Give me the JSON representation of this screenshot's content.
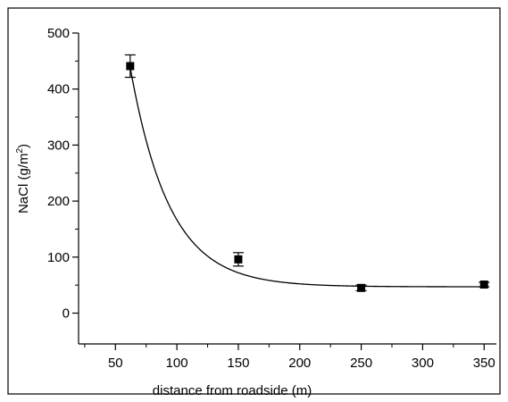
{
  "chart_data": {
    "type": "scatter",
    "title": "",
    "xlabel": "distance from roadside (m)",
    "ylabel_main": "NaCl (g/m",
    "ylabel_sup": "2",
    "ylabel_close": ")",
    "xlim": [
      20,
      360
    ],
    "ylim": [
      -55,
      500
    ],
    "xticks": [
      50,
      100,
      150,
      200,
      250,
      300,
      350
    ],
    "yticks": [
      0,
      100,
      200,
      300,
      400,
      500
    ],
    "x_minor_ticks": [
      25,
      75,
      125,
      175,
      225,
      275,
      325
    ],
    "y_minor_ticks": [
      50,
      150,
      250,
      350,
      450
    ],
    "grid": false,
    "series": [
      {
        "x": [
          62,
          150,
          250,
          350
        ],
        "y": [
          441,
          96,
          45,
          51
        ],
        "err": [
          20,
          12,
          5,
          4
        ],
        "marker": "square",
        "color": "#000000"
      }
    ],
    "fit": {
      "model": "exponential decay",
      "equation": "y = y0 + A*exp(-(x - 62)/t)",
      "y0": 47,
      "A": 392,
      "t": 32,
      "color": "#000000"
    }
  }
}
